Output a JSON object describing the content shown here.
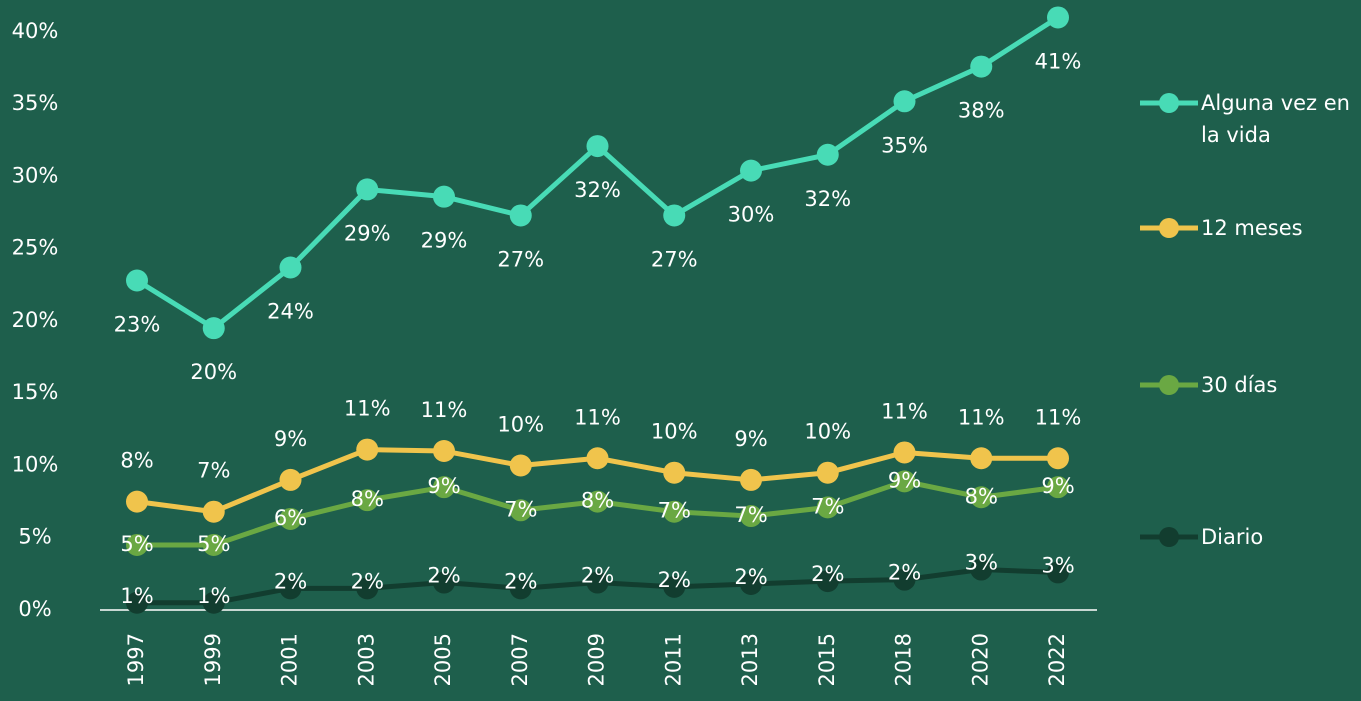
{
  "chart_data": {
    "type": "line",
    "categories": [
      "1997",
      "1999",
      "2001",
      "2003",
      "2005",
      "2007",
      "2009",
      "2011",
      "2013",
      "2015",
      "2018",
      "2020",
      "2022"
    ],
    "series": [
      {
        "name": "Alguna vez en la vida",
        "color": "#48dbb6",
        "values": [
          22.8,
          19.5,
          23.7,
          29.1,
          28.6,
          27.3,
          32.1,
          27.3,
          30.4,
          31.5,
          35.2,
          37.6,
          41.0
        ],
        "value_labels": [
          "23%",
          "20%",
          "24%",
          "29%",
          "29%",
          "27%",
          "32%",
          "27%",
          "30%",
          "32%",
          "35%",
          "38%",
          "41%"
        ]
      },
      {
        "name": "12 meses",
        "color": "#f0c44c",
        "values": [
          7.5,
          6.8,
          9.0,
          11.1,
          11.0,
          10.0,
          10.5,
          9.5,
          9.0,
          9.5,
          10.9,
          10.5,
          10.5
        ],
        "value_labels": [
          "8%",
          "7%",
          "9%",
          "11%",
          "11%",
          "10%",
          "11%",
          "10%",
          "9%",
          "10%",
          "11%",
          "11%",
          "11%"
        ]
      },
      {
        "name": "30 días",
        "color": "#6aa843",
        "values": [
          4.5,
          4.5,
          6.3,
          7.6,
          8.5,
          6.9,
          7.5,
          6.8,
          6.5,
          7.1,
          8.9,
          7.8,
          8.5
        ],
        "value_labels": [
          "5%",
          "5%",
          "6%",
          "8%",
          "9%",
          "7%",
          "8%",
          "7%",
          "7%",
          "7%",
          "9%",
          "8%",
          "9%"
        ]
      },
      {
        "name": "Diario",
        "color": "#123d2f",
        "values": [
          0.5,
          0.5,
          1.5,
          1.5,
          1.9,
          1.5,
          1.9,
          1.6,
          1.8,
          2.0,
          2.1,
          2.8,
          2.6
        ],
        "value_labels": [
          "1%",
          "1%",
          "2%",
          "2%",
          "2%",
          "2%",
          "2%",
          "2%",
          "2%",
          "2%",
          "2%",
          "3%",
          "3%"
        ]
      }
    ],
    "ylim": [
      0,
      42
    ],
    "yticks": [
      {
        "value": 0,
        "label": "0%"
      },
      {
        "value": 5,
        "label": "5%"
      },
      {
        "value": 10,
        "label": "10%"
      },
      {
        "value": 15,
        "label": "15%"
      },
      {
        "value": 20,
        "label": "20%"
      },
      {
        "value": 25,
        "label": "25%"
      },
      {
        "value": 30,
        "label": "30%"
      },
      {
        "value": 35,
        "label": "35%"
      },
      {
        "value": 40,
        "label": "40%"
      }
    ],
    "legend": "right",
    "grid": false
  }
}
